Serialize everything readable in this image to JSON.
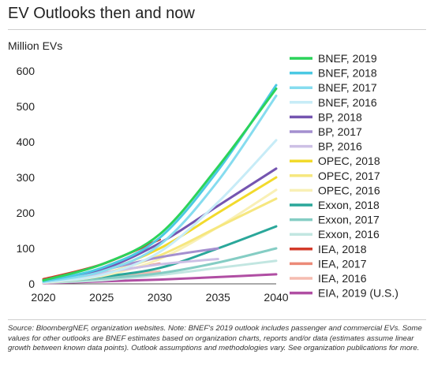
{
  "title": "EV Outlooks then and now",
  "source_note": "Source: BloombergNEF, organization websites. Note: BNEF's 2019 outlook includes passenger and commercial EVs. Some values for other outlooks are BNEF estimates based on organization charts, reports and/or data (estimates assume linear growth between known data points). Outlook assumptions and methodologies vary. See organization publications for more.",
  "chart_data": {
    "type": "line",
    "ylabel": "Million EVs",
    "xlim": [
      2020,
      2040
    ],
    "ylim": [
      0,
      600
    ],
    "xticks": [
      2020,
      2025,
      2030,
      2035,
      2040
    ],
    "yticks": [
      0,
      100,
      200,
      300,
      400,
      500,
      600
    ],
    "grid": false,
    "legend_position": "right",
    "series": [
      {
        "name": "BNEF, 2019",
        "color": "#2bd35a",
        "x": [
          2020,
          2025,
          2030,
          2035,
          2040
        ],
        "y": [
          10,
          55,
          140,
          330,
          550
        ]
      },
      {
        "name": "BNEF, 2018",
        "color": "#4bc9e3",
        "x": [
          2020,
          2025,
          2030,
          2035,
          2040
        ],
        "y": [
          8,
          45,
          130,
          320,
          560
        ]
      },
      {
        "name": "BNEF, 2017",
        "color": "#86dcef",
        "x": [
          2020,
          2025,
          2030,
          2035,
          2040
        ],
        "y": [
          6,
          35,
          110,
          290,
          530
        ]
      },
      {
        "name": "BNEF, 2016",
        "color": "#c7ecf7",
        "x": [
          2020,
          2025,
          2030,
          2035,
          2040
        ],
        "y": [
          4,
          25,
          90,
          230,
          405
        ]
      },
      {
        "name": "BP, 2018",
        "color": "#7555b0",
        "x": [
          2020,
          2025,
          2030,
          2035,
          2040
        ],
        "y": [
          5,
          40,
          115,
          220,
          325
        ]
      },
      {
        "name": "BP, 2017",
        "color": "#a48fcf",
        "x": [
          2020,
          2025,
          2030,
          2035
        ],
        "y": [
          5,
          38,
          75,
          100
        ]
      },
      {
        "name": "BP, 2016",
        "color": "#cdc0e5",
        "x": [
          2020,
          2025,
          2030,
          2035
        ],
        "y": [
          4,
          30,
          55,
          70
        ]
      },
      {
        "name": "OPEC, 2018",
        "color": "#f2da2c",
        "x": [
          2020,
          2025,
          2030,
          2035,
          2040
        ],
        "y": [
          5,
          35,
          100,
          200,
          300
        ]
      },
      {
        "name": "OPEC, 2017",
        "color": "#f6e77f",
        "x": [
          2020,
          2025,
          2030,
          2035,
          2040
        ],
        "y": [
          4,
          28,
          80,
          160,
          240
        ]
      },
      {
        "name": "OPEC, 2016",
        "color": "#f9f0b6",
        "x": [
          2020,
          2025,
          2030,
          2035,
          2040
        ],
        "y": [
          3,
          22,
          70,
          160,
          265
        ]
      },
      {
        "name": "Exxon, 2018",
        "color": "#2aa79a",
        "x": [
          2020,
          2025,
          2030,
          2035,
          2040
        ],
        "y": [
          5,
          20,
          45,
          100,
          162
        ]
      },
      {
        "name": "Exxon, 2017",
        "color": "#85cdc4",
        "x": [
          2020,
          2025,
          2030,
          2035,
          2040
        ],
        "y": [
          4,
          15,
          30,
          60,
          100
        ]
      },
      {
        "name": "Exxon, 2016",
        "color": "#c2e6e1",
        "x": [
          2020,
          2025,
          2030,
          2035,
          2040
        ],
        "y": [
          3,
          10,
          25,
          45,
          65
        ]
      },
      {
        "name": "IEA, 2018",
        "color": "#d33a2a",
        "x": [
          2020,
          2025,
          2030
        ],
        "y": [
          13,
          55,
          125
        ]
      },
      {
        "name": "IEA, 2017",
        "color": "#ec8a78",
        "x": [
          2020,
          2025,
          2030
        ],
        "y": [
          10,
          30,
          57
        ]
      },
      {
        "name": "IEA, 2016",
        "color": "#f5bcb0",
        "x": [
          2020,
          2025,
          2030
        ],
        "y": [
          8,
          20,
          35
        ]
      },
      {
        "name": "EIA, 2019 (U.S.)",
        "color": "#b04ea3",
        "x": [
          2020,
          2025,
          2030,
          2035,
          2040
        ],
        "y": [
          2,
          7,
          12,
          19,
          27
        ]
      }
    ]
  }
}
